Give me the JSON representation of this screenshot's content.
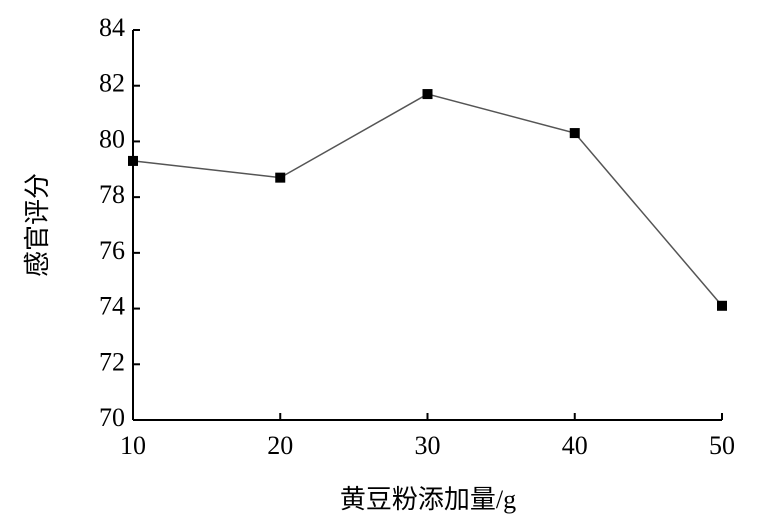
{
  "chart_data": {
    "type": "line",
    "x_label": "黄豆粉添加量/g",
    "y_label": "感官评分",
    "x": [
      10,
      20,
      30,
      40,
      50
    ],
    "series": [
      {
        "name": "感官评分",
        "color": "#555555",
        "marker_color": "#000000",
        "values": [
          79.3,
          78.7,
          81.7,
          80.3,
          74.1
        ]
      }
    ],
    "xlim": [
      10,
      50
    ],
    "xticks": [
      10,
      20,
      30,
      40,
      50
    ],
    "ylim": [
      70,
      84
    ],
    "yticks": [
      70,
      72,
      74,
      76,
      78,
      80,
      82,
      84
    ]
  }
}
